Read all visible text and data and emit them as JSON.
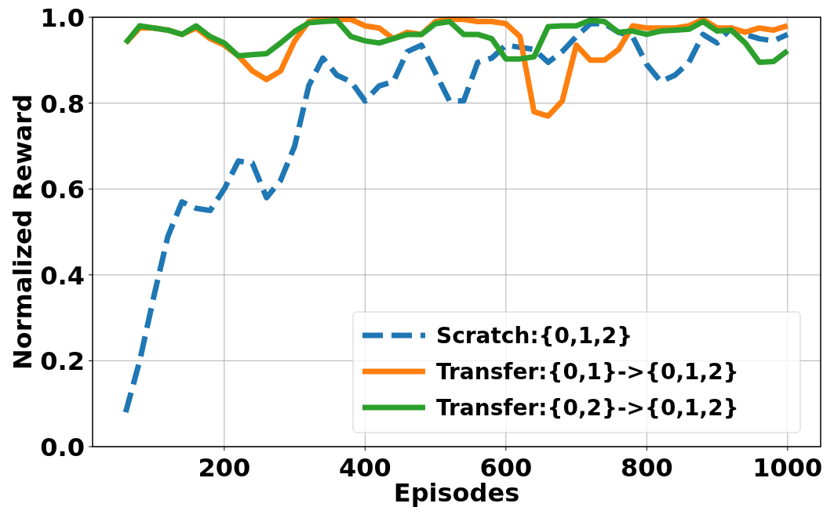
{
  "chart_data": {
    "type": "line",
    "xlabel": "Episodes",
    "ylabel": "Normalized Reward",
    "x": [
      60,
      80,
      100,
      120,
      140,
      160,
      180,
      200,
      220,
      240,
      260,
      280,
      300,
      320,
      340,
      360,
      380,
      400,
      420,
      440,
      460,
      480,
      500,
      520,
      540,
      560,
      580,
      600,
      620,
      640,
      660,
      680,
      700,
      720,
      740,
      760,
      780,
      800,
      820,
      840,
      860,
      880,
      900,
      920,
      940,
      960,
      980,
      1000
    ],
    "series": [
      {
        "name": "Scratch:{0,1,2}",
        "color": "#1f77b4",
        "line_style": "dashed",
        "values": [
          0.08,
          0.2,
          0.35,
          0.49,
          0.57,
          0.555,
          0.55,
          0.6,
          0.665,
          0.66,
          0.58,
          0.62,
          0.7,
          0.84,
          0.905,
          0.865,
          0.85,
          0.805,
          0.84,
          0.85,
          0.92,
          0.935,
          0.87,
          0.805,
          0.805,
          0.895,
          0.905,
          0.935,
          0.93,
          0.925,
          0.895,
          0.92,
          0.955,
          0.985,
          0.985,
          0.965,
          0.955,
          0.89,
          0.85,
          0.865,
          0.895,
          0.96,
          0.94,
          0.975,
          0.96,
          0.95,
          0.945,
          0.96
        ]
      },
      {
        "name": "Transfer:{0,1}->{0,1,2}",
        "color": "#ff7f0e",
        "line_style": "solid",
        "values": [
          0.94,
          0.975,
          0.975,
          0.97,
          0.96,
          0.975,
          0.95,
          0.935,
          0.91,
          0.875,
          0.855,
          0.875,
          0.945,
          0.99,
          0.995,
          0.995,
          0.995,
          0.98,
          0.975,
          0.95,
          0.965,
          0.96,
          0.99,
          0.995,
          0.995,
          0.99,
          0.99,
          0.985,
          0.955,
          0.78,
          0.77,
          0.805,
          0.935,
          0.9,
          0.9,
          0.925,
          0.98,
          0.975,
          0.975,
          0.975,
          0.98,
          0.995,
          0.975,
          0.975,
          0.965,
          0.975,
          0.97,
          0.98
        ]
      },
      {
        "name": "Transfer:{0,2}->{0,1,2}",
        "color": "#2ca02c",
        "line_style": "solid",
        "values": [
          0.94,
          0.98,
          0.975,
          0.97,
          0.96,
          0.98,
          0.955,
          0.94,
          0.91,
          0.913,
          0.915,
          0.94,
          0.967,
          0.987,
          0.99,
          0.992,
          0.955,
          0.945,
          0.94,
          0.95,
          0.96,
          0.96,
          0.985,
          0.99,
          0.96,
          0.96,
          0.95,
          0.903,
          0.903,
          0.908,
          0.978,
          0.98,
          0.98,
          0.993,
          0.99,
          0.965,
          0.968,
          0.96,
          0.968,
          0.97,
          0.972,
          0.99,
          0.968,
          0.97,
          0.94,
          0.895,
          0.897,
          0.922
        ]
      }
    ],
    "xlim": [
      13,
      1047
    ],
    "ylim": [
      0,
      1
    ],
    "xticks": [
      200,
      400,
      600,
      800,
      1000
    ],
    "yticks": [
      {
        "value": 0,
        "label": "0.0"
      },
      {
        "value": 0.2,
        "label": "0.2"
      },
      {
        "value": 0.4,
        "label": "0.4"
      },
      {
        "value": 0.6,
        "label": "0.6"
      },
      {
        "value": 0.8,
        "label": "0.8"
      },
      {
        "value": 1,
        "label": "1.0"
      }
    ],
    "grid": true,
    "legend": "bottom right"
  }
}
